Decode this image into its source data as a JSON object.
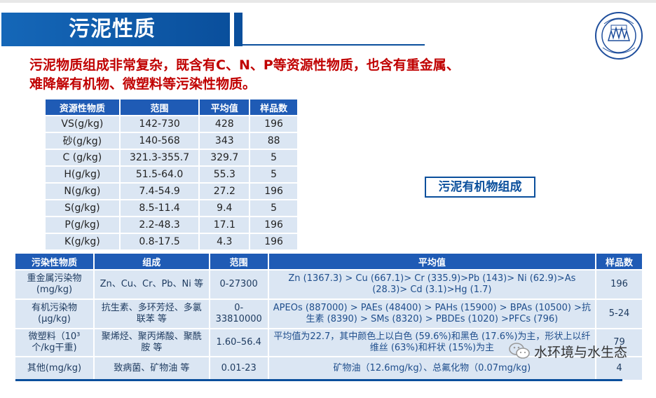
{
  "header": {
    "title": "污泥性质"
  },
  "intro": {
    "line1": "污泥物质组成非常复杂，既含有C、N、P等资源性物质，也含有重金属、",
    "line2": "难降解有机物、微塑料等污染性物质。"
  },
  "resource_table": {
    "headers": [
      "资源性物质",
      "范围",
      "平均值",
      "样品数"
    ],
    "rows": [
      [
        "VS(g/kg)",
        "142-730",
        "428",
        "196"
      ],
      [
        "砂(g/kg)",
        "140-568",
        "343",
        "88"
      ],
      [
        "C (g/kg)",
        "321.3-355.7",
        "329.7",
        "5"
      ],
      [
        "H(g/kg)",
        "51.5-64.0",
        "55.3",
        "5"
      ],
      [
        "N(g/kg)",
        "7.4-54.9",
        "27.2",
        "196"
      ],
      [
        "S(g/kg)",
        "8.5-11.4",
        "9.4",
        "5"
      ],
      [
        "P(g/kg)",
        "2.2-48.3",
        "17.1",
        "196"
      ],
      [
        "K(g/kg)",
        "0.8-17.5",
        "4.3",
        "196"
      ]
    ]
  },
  "organic_label": "污泥有机物组成",
  "pollutant_table": {
    "headers": [
      "污染性物质",
      "组成",
      "范围",
      "平均值",
      "样品数"
    ],
    "rows": [
      [
        "重金属污染物(mg/kg)",
        "Zn、Cu、Cr、Pb、Ni 等",
        "0-27300",
        "Zn (1367.3) > Cu (667.1)> Cr (335.9)>Pb (143)> Ni (62.9)>As (28.3)> Cd (3.1)>Hg (1.7)",
        "196"
      ],
      [
        "有机污染物(μg/kg)",
        "抗生素、多环芳烃、多氯联苯 等",
        "0-33810000",
        "APEOs (887000) > PAEs (48400) > PAHs (15900) > BPAs (10500) >抗生素 (8390) > SMs (8320) > PBDEs (1020) >PFCs (796)",
        "5-24"
      ],
      [
        "微塑料（10³个/kg干重)",
        "聚烯烃、聚丙烯酸、聚酰胺 等",
        "1.60–56.4",
        "平均值为22.7，其中颜色上以白色 (59.6%)和黑色 (17.6%)为主，形状上以纤维丝 (63%)和杆状 (15%)为主",
        "79"
      ],
      [
        "其他(mg/kg)",
        "致病菌、矿物油 等",
        "0.01-23",
        "矿物油（12.6mg/kg）、总氟化物（0.07mg/kg)",
        "4"
      ]
    ]
  },
  "watermark": "水环境与水生态",
  "icons": {
    "seal": "tongji-university-seal",
    "watermark": "wechat-icon"
  },
  "colors": {
    "brand_blue": "#0a4f9c",
    "header_blue": "#1f5bb5",
    "cell_bg": "#dbe6f3",
    "intro_red": "#c00000"
  }
}
